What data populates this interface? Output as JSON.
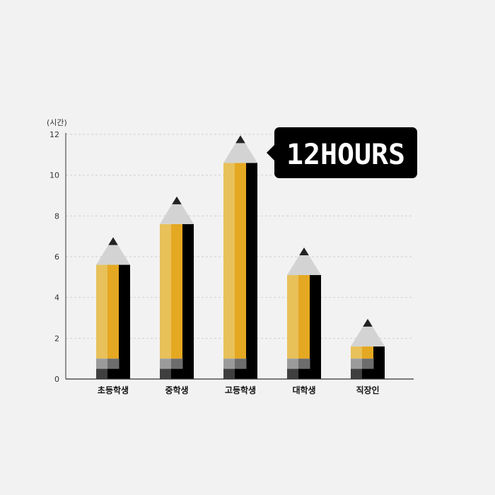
{
  "chart_data": {
    "type": "bar",
    "ylabel": "(시간)",
    "ylim": [
      0,
      12
    ],
    "yticks": [
      0,
      2,
      4,
      6,
      8,
      10,
      12
    ],
    "categories": [
      "초등학생",
      "중학생",
      "고등학생",
      "대학생",
      "직장인"
    ],
    "values": [
      5.6,
      7.6,
      10.6,
      5.1,
      1.6
    ],
    "grid": true,
    "annotation": {
      "text": "12HOURS",
      "category": "고등학생"
    },
    "colors": {
      "body_light": "#e8c15a",
      "body_mid": "#e5a822",
      "body_dark": "#000000",
      "eraser_light": "#9b9b9b",
      "eraser_mid": "#6d6d6d",
      "eraser_dark": "#3f3f3f",
      "cone": "#d3d3d3",
      "tip": "#222222",
      "grid": "#cfcfcf",
      "axis": "#333333",
      "callout_bg": "#000000",
      "callout_text": "#ffffff"
    }
  }
}
